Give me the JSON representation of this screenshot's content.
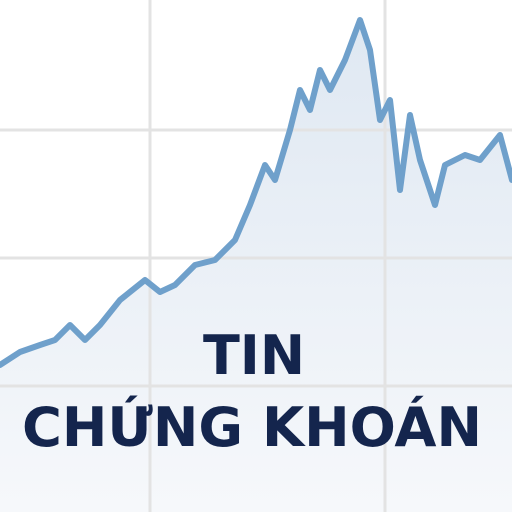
{
  "title_lines": [
    "TIN",
    "CHỨNG KHOÁN"
  ]
}
